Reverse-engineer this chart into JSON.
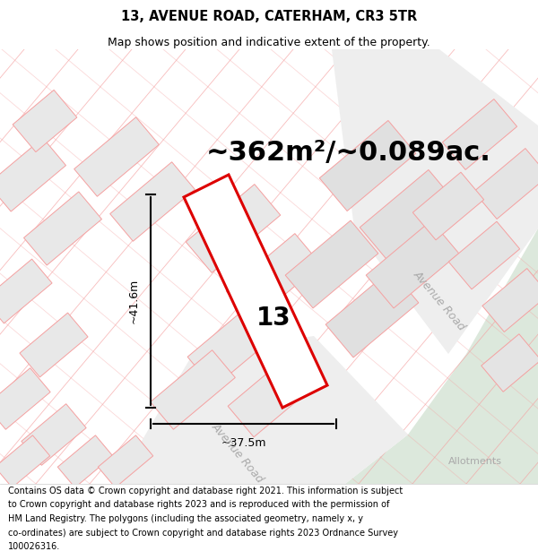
{
  "title": "13, AVENUE ROAD, CATERHAM, CR3 5TR",
  "subtitle": "Map shows position and indicative extent of the property.",
  "area_text": "~362m²/~0.089ac.",
  "dim_width": "~37.5m",
  "dim_height": "~41.6m",
  "plot_number": "13",
  "road_label_upper": "Avenue Road",
  "road_label_lower": "Avenue Road",
  "allotments_label": "Allotments",
  "footer_lines": [
    "Contains OS data © Crown copyright and database right 2021. This information is subject",
    "to Crown copyright and database rights 2023 and is reproduced with the permission of",
    "HM Land Registry. The polygons (including the associated geometry, namely x, y",
    "co-ordinates) are subject to Crown copyright and database rights 2023 Ordnance Survey",
    "100026316."
  ],
  "bg_color": "#ffffff",
  "map_bg": "#ffffff",
  "parcel_fill": "#e8e8e8",
  "parcel_edge": "#f5a0a0",
  "highlight_color": "#dd0000",
  "green_color": "#dce8dc",
  "road_fill": "#f0f0f0",
  "dim_line_color": "#000000",
  "text_gray": "#aaaaaa",
  "footer_fontsize": 7.0,
  "header_fontsize": 10.5,
  "subtitle_fontsize": 9.0,
  "area_fontsize": 22,
  "dim_fontsize": 9,
  "plot_num_fontsize": 20,
  "road_label_fontsize": 9,
  "allotments_fontsize": 8
}
